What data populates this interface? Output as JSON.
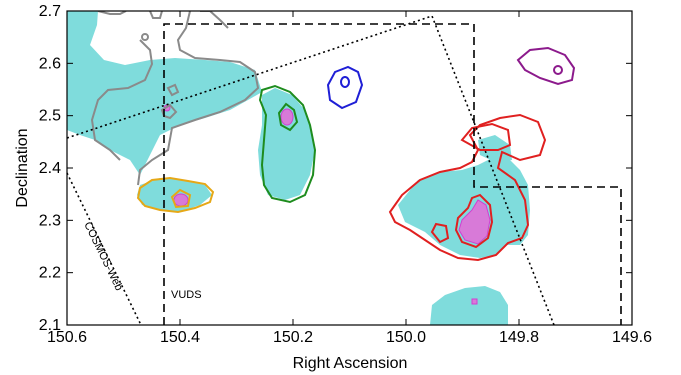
{
  "chart_data": {
    "type": "contour-map",
    "xlabel": "Right Ascension",
    "ylabel": "Declination",
    "xlim": [
      150.6,
      149.6
    ],
    "ylim": [
      2.1,
      2.7
    ],
    "x_ticks": [
      150.6,
      150.4,
      150.2,
      150.0,
      149.8,
      149.6
    ],
    "x_tick_labels": [
      "150.6",
      "150.4",
      "150.2",
      "150.0",
      "149.8",
      "149.6"
    ],
    "y_ticks": [
      2.1,
      2.2,
      2.3,
      2.4,
      2.5,
      2.6,
      2.7
    ],
    "y_tick_labels": [
      "2.1",
      "2.2",
      "2.3",
      "2.4",
      "2.5",
      "2.6",
      "2.7"
    ],
    "grid": false,
    "annotations": [
      {
        "text": "VUDS",
        "ra": 150.42,
        "dec": 2.14
      },
      {
        "text": "COSMOS-Web",
        "ra": 150.56,
        "dec": 2.24,
        "rotation_deg": 64
      }
    ],
    "fields": [
      {
        "name": "VUDS",
        "style": "dashed",
        "ra": [
          150.43,
          150.43,
          149.885,
          149.885,
          149.62,
          149.62
        ],
        "dec": [
          2.1,
          2.675,
          2.675,
          2.362,
          2.362,
          2.1
        ]
      },
      {
        "name": "COSMOS-Web",
        "style": "dotted",
        "ra": [
          150.6,
          149.965,
          149.73,
          150.475
        ],
        "dec": [
          2.455,
          2.69,
          2.1,
          2.1
        ]
      }
    ],
    "structures": [
      {
        "color": "#7a7a7a",
        "center_ra": 150.41,
        "center_dec": 2.56
      },
      {
        "color": "#e6a817",
        "center_ra": 150.41,
        "center_dec": 2.34
      },
      {
        "color": "#1e8c1e",
        "center_ra": 150.21,
        "center_dec": 2.47
      },
      {
        "color": "#1f1fd6",
        "center_ra": 150.11,
        "center_dec": 2.61
      },
      {
        "color": "#8c1a8c",
        "center_ra": 149.74,
        "center_dec": 2.6
      },
      {
        "color": "#e02020",
        "center_ra": 149.88,
        "center_dec": 2.34
      }
    ],
    "colors": {
      "fill": "#7fdcdc",
      "peak": "#d87ad8",
      "axes": "#000000"
    }
  }
}
